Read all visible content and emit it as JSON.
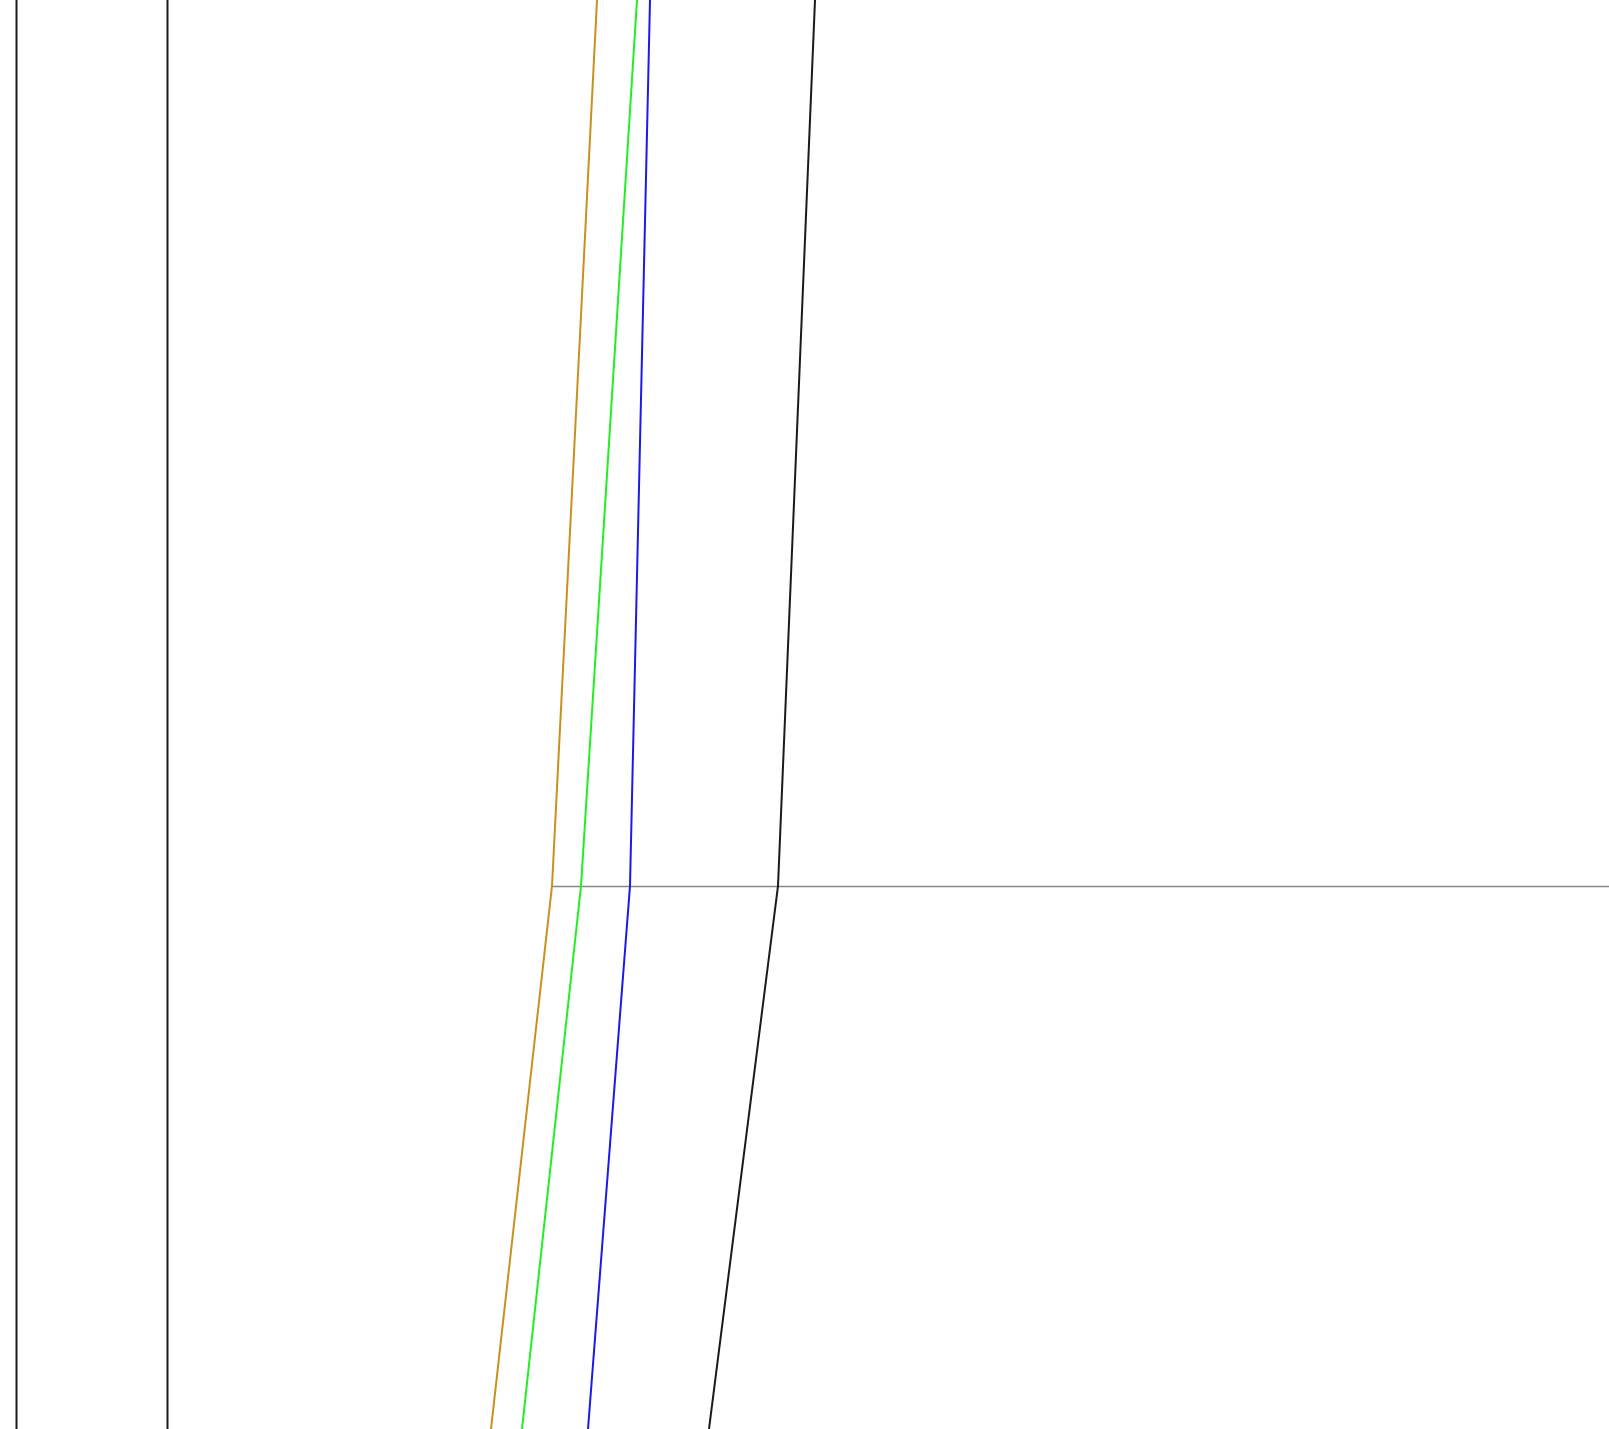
{
  "diagram": {
    "border_lines": [
      {
        "name": "left-border-line-outer",
        "color": "#1a1a1a"
      },
      {
        "name": "left-border-line-inner",
        "color": "#1a1a1a"
      }
    ],
    "traces": [
      {
        "name": "orange-trace",
        "color": "#c8901c"
      },
      {
        "name": "green-trace",
        "color": "#22ee22"
      },
      {
        "name": "blue-trace",
        "color": "#1a1aee"
      },
      {
        "name": "black-trace",
        "color": "#1a1a1a"
      }
    ],
    "reference_line": {
      "name": "horizontal-reference-line",
      "color": "#888888"
    }
  }
}
